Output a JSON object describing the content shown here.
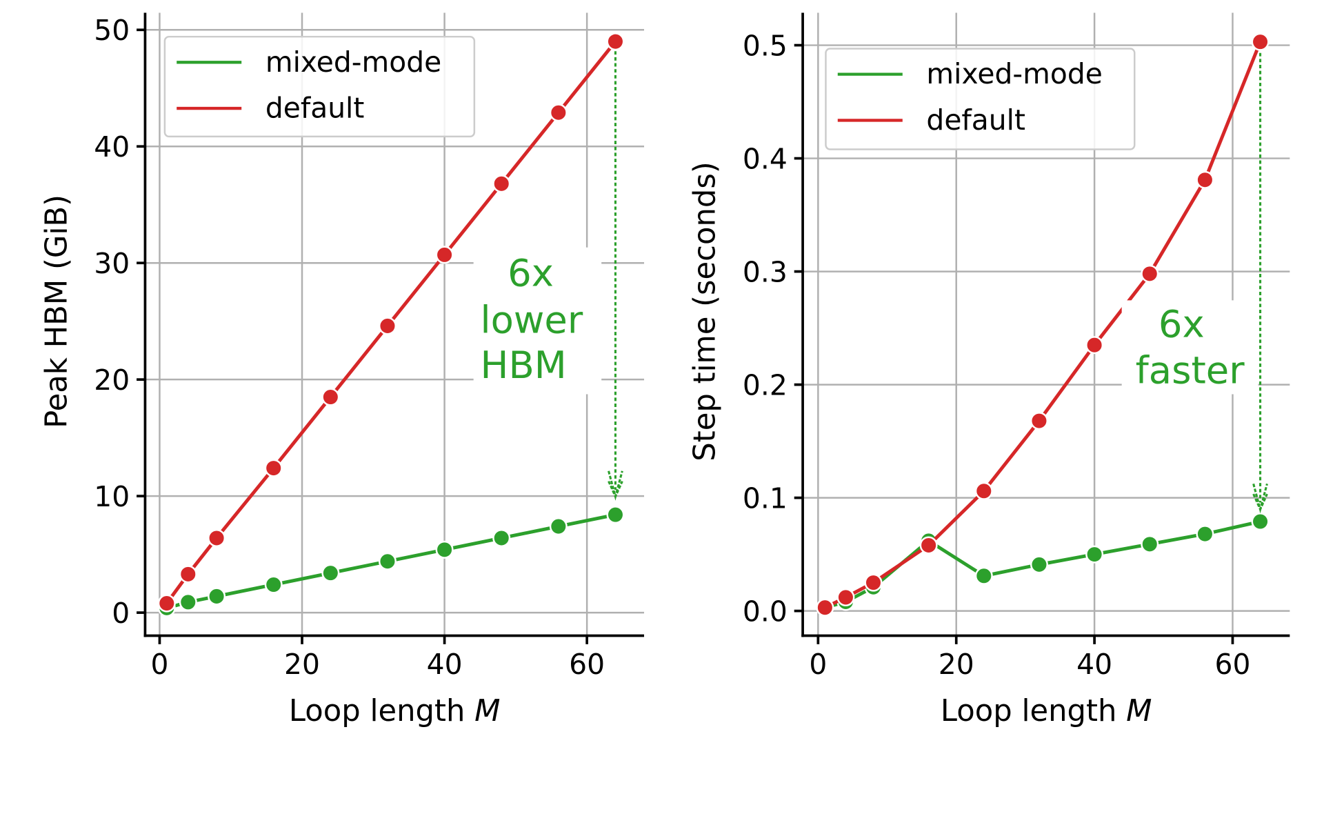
{
  "colors": {
    "mixed": "#2ca02c",
    "default": "#d62728",
    "grid": "#b0b0b0"
  },
  "chart_data": [
    {
      "type": "line",
      "xlabel": "Loop length ",
      "xlabel_var": "M",
      "ylabel": "Peak HBM (GiB)",
      "xlim": [
        -2,
        68
      ],
      "ylim": [
        -2,
        51
      ],
      "xticks": [
        0,
        20,
        40,
        60
      ],
      "yticks": [
        0,
        10,
        20,
        30,
        40,
        50
      ],
      "grid": true,
      "legend": "top-left",
      "x": [
        1,
        4,
        8,
        16,
        24,
        32,
        40,
        48,
        56,
        64
      ],
      "series": [
        {
          "name": "mixed-mode",
          "color": "#2ca02c",
          "values": [
            0.4,
            0.9,
            1.4,
            2.4,
            3.4,
            4.4,
            5.4,
            6.4,
            7.4,
            8.4
          ]
        },
        {
          "name": "default",
          "color": "#d62728",
          "values": [
            0.8,
            3.3,
            6.4,
            12.4,
            18.5,
            24.6,
            30.7,
            36.8,
            42.9,
            49.0
          ]
        }
      ],
      "annotation": {
        "lines": [
          "6x",
          "lower",
          "HBM"
        ],
        "x": 64,
        "from": 49.0,
        "to": 8.4
      }
    },
    {
      "type": "line",
      "xlabel": "Loop length ",
      "xlabel_var": "M",
      "ylabel": "Step time (seconds)",
      "xlim": [
        -2,
        68
      ],
      "ylim": [
        -0.02,
        0.53
      ],
      "xticks": [
        0,
        20,
        40,
        60
      ],
      "yticks": [
        "0.0",
        "0.1",
        "0.2",
        "0.3",
        "0.4",
        "0.5"
      ],
      "grid": true,
      "legend": "top-left",
      "x": [
        1,
        4,
        8,
        16,
        24,
        32,
        40,
        48,
        56,
        64
      ],
      "series": [
        {
          "name": "mixed-mode",
          "color": "#2ca02c",
          "values": [
            0.003,
            0.008,
            0.021,
            0.062,
            0.031,
            0.041,
            0.05,
            0.059,
            0.068,
            0.079
          ]
        },
        {
          "name": "default",
          "color": "#d62728",
          "values": [
            0.003,
            0.012,
            0.025,
            0.058,
            0.106,
            0.168,
            0.235,
            0.298,
            0.381,
            0.503
          ]
        }
      ],
      "annotation": {
        "lines": [
          "6x",
          "faster"
        ],
        "x": 64,
        "from": 0.503,
        "to": 0.079
      }
    }
  ]
}
